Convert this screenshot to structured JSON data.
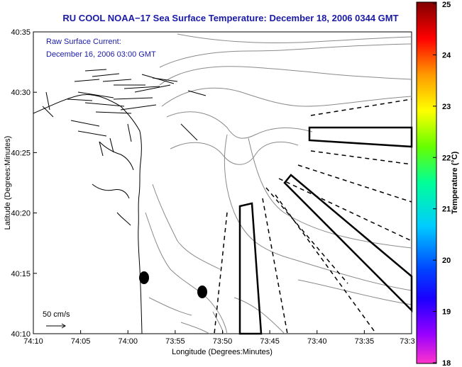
{
  "title": "RU COOL  NOAA−17  Sea Surface Temperature:  December 18, 2006 0344 GMT",
  "legend": {
    "line1": "Raw Surface Current:",
    "line2": "December 16, 2006 03:00 GMT",
    "scale_label": "50 cm/s"
  },
  "axes": {
    "xlabel": "Longitude (Degrees:Minutes)",
    "ylabel": "Latitude (Degrees:Minutes)",
    "x_ticks": [
      "74:10",
      "74:05",
      "74:00",
      "73:55",
      "73:50",
      "73:45",
      "73:40",
      "73:35",
      "73:3"
    ],
    "y_ticks": [
      "40:35",
      "40:30",
      "40:25",
      "40:20",
      "40:15",
      "40:10"
    ]
  },
  "colorbar": {
    "label": "Temperature (°C)",
    "ticks": [
      "25",
      "24",
      "23",
      "22",
      "21",
      "20",
      "19",
      "18"
    ],
    "range": [
      18,
      25
    ],
    "colors": [
      "#ff33cc",
      "#6a00ff",
      "#0000ff",
      "#00c0ff",
      "#00ff80",
      "#7fff00",
      "#ffff00",
      "#ff9900",
      "#ff0000",
      "#8b0000"
    ]
  }
}
